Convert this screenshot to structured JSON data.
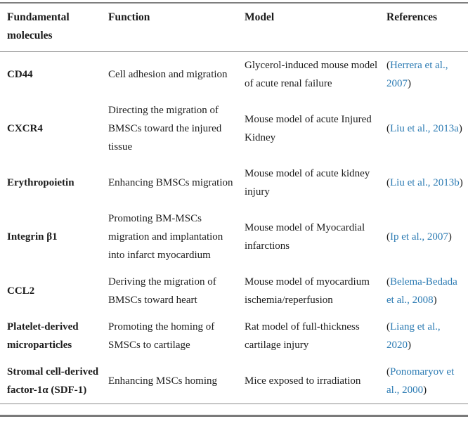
{
  "colors": {
    "link": "#2c7bb3",
    "text": "#1d1d1d",
    "rule": "#8d8d8d"
  },
  "table": {
    "headers": [
      "Fundamental molecules",
      "Function",
      "Model",
      "References"
    ],
    "rows": [
      {
        "molecule": "CD44",
        "function": "Cell adhesion and migration",
        "model": "Glycerol-induced mouse model of acute renal failure",
        "ref": {
          "pre": "(",
          "link": "Herrera et al., 2007",
          "post": ")"
        }
      },
      {
        "molecule": "CXCR4",
        "function": "Directing the migration of BMSCs toward the injured tissue",
        "model": "Mouse model of acute Injured Kidney",
        "ref": {
          "pre": "(",
          "link": "Liu et al., 2013a",
          "post": ")"
        }
      },
      {
        "molecule": "Erythropoietin",
        "function": "Enhancing BMSCs migration",
        "model": "Mouse model of acute kidney injury",
        "ref": {
          "pre": "(",
          "link": "Liu et al., 2013b",
          "post": ")"
        }
      },
      {
        "molecule": "Integrin β1",
        "function": "Promoting BM-MSCs migration and implantation into infarct myocardium",
        "model": "Mouse model of Myocardial infarctions",
        "ref": {
          "pre": "(",
          "link": "Ip et al., 2007",
          "post": ")"
        }
      },
      {
        "molecule": "CCL2",
        "function": "Deriving the migration of BMSCs toward heart",
        "model": "Mouse model of myocardium ischemia/reperfusion",
        "ref": {
          "pre": "(",
          "link": "Belema-Bedada et al., 2008",
          "post": ")"
        }
      },
      {
        "molecule": "Platelet-derived microparticles",
        "function": "Promoting the homing of SMSCs to cartilage",
        "model": "Rat model of full-thickness cartilage injury",
        "ref": {
          "pre": "(",
          "link": "Liang et al., 2020",
          "post": ")"
        }
      },
      {
        "molecule": "Stromal cell-derived factor-1α (SDF-1)",
        "function": "Enhancing MSCs homing",
        "model": "Mice exposed to irradiation",
        "ref": {
          "pre": "(",
          "link": "Ponomaryov et al., 2000",
          "post": ")"
        }
      }
    ]
  }
}
